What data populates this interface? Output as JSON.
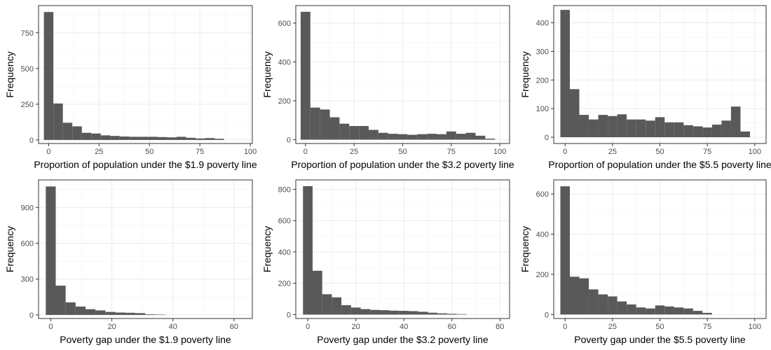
{
  "chart_data": [
    {
      "type": "bar",
      "xlabel": "Proportion of population under the $1.9 poverty line",
      "ylabel": "Frequency",
      "bin_width": 4.7,
      "bin_start": -2.35,
      "values": [
        895,
        255,
        120,
        95,
        50,
        45,
        32,
        28,
        24,
        22,
        22,
        22,
        20,
        18,
        22,
        15,
        10,
        13,
        8
      ],
      "xlim": [
        -5,
        101
      ],
      "ylim": [
        -25,
        940
      ],
      "xticks": [
        0,
        25,
        50,
        75,
        100
      ],
      "yticks": [
        0,
        250,
        500,
        750
      ],
      "grid": true
    },
    {
      "type": "bar",
      "xlabel": "Proportion of population under the $3.2 poverty line",
      "ylabel": "Frequency",
      "bin_width": 5,
      "bin_start": -2.5,
      "values": [
        658,
        165,
        155,
        115,
        82,
        70,
        70,
        50,
        35,
        30,
        28,
        25,
        28,
        30,
        28,
        42,
        30,
        35,
        20,
        5
      ],
      "xlim": [
        -5,
        105
      ],
      "ylim": [
        -20,
        690
      ],
      "xticks": [
        0,
        25,
        50,
        75,
        100
      ],
      "yticks": [
        0,
        200,
        400,
        600
      ],
      "grid": true
    },
    {
      "type": "bar",
      "xlabel": "Proportion of population under the $5.5 poverty line",
      "ylabel": "Frequency",
      "bin_width": 5,
      "bin_start": -2.5,
      "values": [
        445,
        168,
        78,
        62,
        78,
        74,
        80,
        62,
        62,
        58,
        70,
        52,
        52,
        42,
        38,
        34,
        44,
        58,
        107,
        20
      ],
      "xlim": [
        -6,
        106
      ],
      "ylim": [
        -22,
        460
      ],
      "xticks": [
        0,
        25,
        50,
        75,
        100
      ],
      "yticks": [
        0,
        100,
        200,
        300,
        400
      ],
      "grid": true
    },
    {
      "type": "bar",
      "xlabel": "Poverty gap under the $1.9 poverty line",
      "ylabel": "Frequency",
      "bin_width": 3.25,
      "bin_start": -1.625,
      "values": [
        1075,
        245,
        105,
        70,
        48,
        38,
        25,
        20,
        18,
        15,
        5,
        3
      ],
      "xlim": [
        -4,
        66
      ],
      "ylim": [
        -30,
        1130
      ],
      "xticks": [
        0,
        20,
        40,
        60
      ],
      "yticks": [
        0,
        300,
        600,
        900
      ],
      "grid": true
    },
    {
      "type": "bar",
      "xlabel": "Poverty gap under the $3.2 poverty line",
      "ylabel": "Frequency",
      "bin_width": 4,
      "bin_start": -2,
      "values": [
        820,
        280,
        130,
        110,
        60,
        45,
        35,
        30,
        28,
        25,
        24,
        22,
        18,
        12,
        8,
        5,
        3
      ],
      "xlim": [
        -5,
        84
      ],
      "ylim": [
        -25,
        860
      ],
      "xticks": [
        0,
        20,
        40,
        60,
        80
      ],
      "yticks": [
        0,
        200,
        400,
        600,
        800
      ],
      "grid": true
    },
    {
      "type": "bar",
      "xlabel": "Poverty gap under the $5.5 poverty line",
      "ylabel": "Frequency",
      "bin_width": 5,
      "bin_start": -2.5,
      "values": [
        638,
        188,
        180,
        125,
        100,
        90,
        65,
        50,
        35,
        30,
        45,
        40,
        35,
        30,
        18,
        8
      ],
      "xlim": [
        -6,
        106
      ],
      "ylim": [
        -20,
        670
      ],
      "xticks": [
        0,
        25,
        50,
        75,
        100
      ],
      "yticks": [
        0,
        200,
        400,
        600
      ],
      "grid": true
    }
  ],
  "colors": {
    "bar": "#595959",
    "panel_border": "#333333",
    "grid": "#ebebeb",
    "tick_text": "#4d4d4d"
  }
}
